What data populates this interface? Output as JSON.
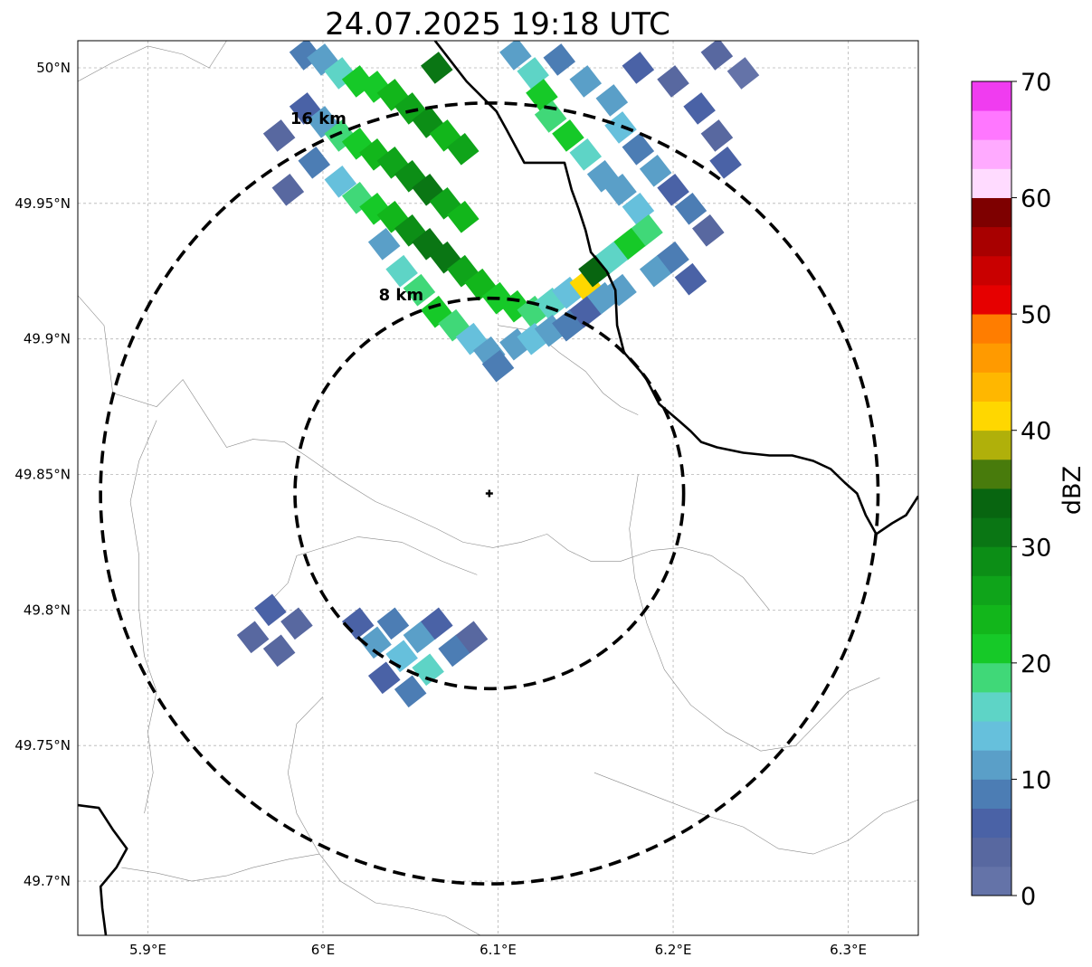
{
  "title": "24.07.2025 19:18 UTC",
  "map": {
    "lon_range": [
      5.86,
      6.34
    ],
    "lat_range": [
      49.68,
      50.01
    ],
    "lon_ticks": [
      {
        "value": 5.9,
        "label": "5.9°E"
      },
      {
        "value": 6.0,
        "label": "6°E"
      },
      {
        "value": 6.1,
        "label": "6.1°E"
      },
      {
        "value": 6.2,
        "label": "6.2°E"
      },
      {
        "value": 6.3,
        "label": "6.3°E"
      }
    ],
    "lat_ticks": [
      {
        "value": 49.7,
        "label": "49.7°N"
      },
      {
        "value": 49.75,
        "label": "49.75°N"
      },
      {
        "value": 49.8,
        "label": "49.8°N"
      },
      {
        "value": 49.85,
        "label": "49.85°N"
      },
      {
        "value": 49.9,
        "label": "49.9°N"
      },
      {
        "value": 49.95,
        "label": "49.95°N"
      },
      {
        "value": 50.0,
        "label": "50°N"
      }
    ],
    "gridlines": true,
    "radar_site": {
      "lon": 6.095,
      "lat": 49.843
    },
    "range_rings": [
      {
        "radius_km": 8,
        "label": "8 km",
        "lat_top": 49.915,
        "lon_half_width": 0.111
      },
      {
        "radius_km": 16,
        "label": "16 km",
        "lat_top": 49.987,
        "lon_half_width": 0.222
      }
    ],
    "national_border": [
      [
        [
          6.064,
          50.01
        ],
        [
          6.082,
          49.995
        ],
        [
          6.099,
          49.984
        ],
        [
          6.105,
          49.977
        ],
        [
          6.115,
          49.965
        ],
        [
          6.138,
          49.965
        ],
        [
          6.142,
          49.955
        ],
        [
          6.146,
          49.948
        ],
        [
          6.15,
          49.94
        ],
        [
          6.153,
          49.932
        ],
        [
          6.162,
          49.925
        ],
        [
          6.167,
          49.918
        ],
        [
          6.168,
          49.905
        ],
        [
          6.172,
          49.895
        ],
        [
          6.184,
          49.886
        ],
        [
          6.192,
          49.876
        ],
        [
          6.203,
          49.87
        ],
        [
          6.21,
          49.866
        ],
        [
          6.216,
          49.862
        ],
        [
          6.225,
          49.86
        ],
        [
          6.24,
          49.858
        ],
        [
          6.255,
          49.857
        ],
        [
          6.268,
          49.857
        ],
        [
          6.28,
          49.855
        ],
        [
          6.29,
          49.852
        ],
        [
          6.298,
          49.847
        ],
        [
          6.305,
          49.843
        ],
        [
          6.31,
          49.835
        ],
        [
          6.316,
          49.828
        ],
        [
          6.325,
          49.832
        ],
        [
          6.333,
          49.835
        ],
        [
          6.34,
          49.842
        ]
      ],
      [
        [
          5.86,
          49.728
        ],
        [
          5.872,
          49.727
        ],
        [
          5.88,
          49.719
        ],
        [
          5.888,
          49.712
        ],
        [
          5.882,
          49.705
        ],
        [
          5.873,
          49.698
        ],
        [
          5.874,
          49.69
        ],
        [
          5.876,
          49.68
        ]
      ]
    ],
    "admin_boundaries": [
      [
        [
          5.86,
          49.916
        ],
        [
          5.875,
          49.905
        ],
        [
          5.88,
          49.88
        ],
        [
          5.905,
          49.875
        ],
        [
          5.92,
          49.885
        ],
        [
          5.935,
          49.87
        ],
        [
          5.945,
          49.86
        ],
        [
          5.96,
          49.863
        ],
        [
          5.978,
          49.862
        ],
        [
          5.99,
          49.857
        ],
        [
          6.01,
          49.848
        ],
        [
          6.03,
          49.84
        ],
        [
          6.048,
          49.835
        ],
        [
          6.065,
          49.83
        ],
        [
          6.08,
          49.825
        ],
        [
          6.097,
          49.823
        ],
        [
          6.113,
          49.825
        ],
        [
          6.128,
          49.828
        ],
        [
          6.14,
          49.822
        ],
        [
          6.153,
          49.818
        ],
        [
          6.17,
          49.818
        ],
        [
          6.188,
          49.822
        ],
        [
          6.205,
          49.823
        ],
        [
          6.222,
          49.82
        ],
        [
          6.24,
          49.812
        ],
        [
          6.255,
          49.8
        ]
      ],
      [
        [
          5.965,
          49.8
        ],
        [
          5.98,
          49.81
        ],
        [
          5.985,
          49.82
        ],
        [
          6.0,
          49.823
        ],
        [
          6.02,
          49.827
        ],
        [
          6.045,
          49.825
        ],
        [
          6.068,
          49.818
        ],
        [
          6.088,
          49.813
        ]
      ],
      [
        [
          5.905,
          49.87
        ],
        [
          5.895,
          49.855
        ],
        [
          5.89,
          49.84
        ],
        [
          5.895,
          49.82
        ],
        [
          5.895,
          49.8
        ],
        [
          5.898,
          49.783
        ],
        [
          5.905,
          49.77
        ],
        [
          5.9,
          49.755
        ],
        [
          5.903,
          49.74
        ],
        [
          5.898,
          49.725
        ]
      ],
      [
        [
          6.0,
          49.768
        ],
        [
          5.985,
          49.758
        ],
        [
          5.98,
          49.74
        ],
        [
          5.985,
          49.725
        ],
        [
          5.998,
          49.71
        ],
        [
          6.01,
          49.7
        ],
        [
          6.03,
          49.692
        ],
        [
          6.05,
          49.69
        ],
        [
          6.07,
          49.687
        ],
        [
          6.09,
          49.68
        ]
      ],
      [
        [
          6.155,
          49.74
        ],
        [
          6.175,
          49.735
        ],
        [
          6.195,
          49.73
        ],
        [
          6.215,
          49.725
        ],
        [
          6.24,
          49.72
        ],
        [
          6.26,
          49.712
        ],
        [
          6.28,
          49.71
        ],
        [
          6.3,
          49.715
        ],
        [
          6.32,
          49.725
        ],
        [
          6.34,
          49.73
        ]
      ],
      [
        [
          6.1,
          49.905
        ],
        [
          6.12,
          49.903
        ],
        [
          6.135,
          49.895
        ],
        [
          6.15,
          49.888
        ],
        [
          6.16,
          49.88
        ],
        [
          6.17,
          49.875
        ],
        [
          6.18,
          49.872
        ]
      ],
      [
        [
          5.885,
          49.705
        ],
        [
          5.905,
          49.703
        ],
        [
          5.925,
          49.7
        ],
        [
          5.945,
          49.702
        ],
        [
          5.96,
          49.705
        ],
        [
          5.98,
          49.708
        ],
        [
          5.998,
          49.71
        ]
      ],
      [
        [
          6.18,
          49.85
        ],
        [
          6.175,
          49.83
        ],
        [
          6.178,
          49.812
        ],
        [
          6.185,
          49.795
        ],
        [
          6.195,
          49.778
        ],
        [
          6.21,
          49.765
        ],
        [
          6.23,
          49.755
        ],
        [
          6.25,
          49.748
        ],
        [
          6.27,
          49.75
        ],
        [
          6.285,
          49.76
        ],
        [
          6.3,
          49.77
        ],
        [
          6.318,
          49.775
        ]
      ],
      [
        [
          5.86,
          49.995
        ],
        [
          5.88,
          50.002
        ],
        [
          5.9,
          50.008
        ],
        [
          5.92,
          50.005
        ],
        [
          5.935,
          50.0
        ],
        [
          5.945,
          50.01
        ]
      ]
    ],
    "reflectivity_cells": [
      {
        "lon": 5.99,
        "lat": 50.005,
        "dbz": 8
      },
      {
        "lon": 6.0,
        "lat": 50.003,
        "dbz": 12
      },
      {
        "lon": 6.01,
        "lat": 49.998,
        "dbz": 16
      },
      {
        "lon": 6.02,
        "lat": 49.995,
        "dbz": 20
      },
      {
        "lon": 6.03,
        "lat": 49.993,
        "dbz": 22
      },
      {
        "lon": 6.04,
        "lat": 49.99,
        "dbz": 24
      },
      {
        "lon": 6.05,
        "lat": 49.985,
        "dbz": 26
      },
      {
        "lon": 6.06,
        "lat": 49.98,
        "dbz": 28
      },
      {
        "lon": 6.065,
        "lat": 50.0,
        "dbz": 30
      },
      {
        "lon": 6.07,
        "lat": 49.975,
        "dbz": 24
      },
      {
        "lon": 6.08,
        "lat": 49.97,
        "dbz": 26
      },
      {
        "lon": 5.99,
        "lat": 49.985,
        "dbz": 6
      },
      {
        "lon": 6.0,
        "lat": 49.98,
        "dbz": 12
      },
      {
        "lon": 6.01,
        "lat": 49.975,
        "dbz": 18
      },
      {
        "lon": 6.02,
        "lat": 49.972,
        "dbz": 22
      },
      {
        "lon": 6.03,
        "lat": 49.968,
        "dbz": 24
      },
      {
        "lon": 6.04,
        "lat": 49.965,
        "dbz": 26
      },
      {
        "lon": 6.05,
        "lat": 49.96,
        "dbz": 28
      },
      {
        "lon": 6.06,
        "lat": 49.955,
        "dbz": 30
      },
      {
        "lon": 6.07,
        "lat": 49.95,
        "dbz": 26
      },
      {
        "lon": 6.08,
        "lat": 49.945,
        "dbz": 24
      },
      {
        "lon": 5.995,
        "lat": 49.965,
        "dbz": 8
      },
      {
        "lon": 6.01,
        "lat": 49.958,
        "dbz": 14
      },
      {
        "lon": 6.02,
        "lat": 49.952,
        "dbz": 18
      },
      {
        "lon": 6.03,
        "lat": 49.948,
        "dbz": 22
      },
      {
        "lon": 6.04,
        "lat": 49.945,
        "dbz": 24
      },
      {
        "lon": 6.05,
        "lat": 49.94,
        "dbz": 28
      },
      {
        "lon": 6.06,
        "lat": 49.935,
        "dbz": 32
      },
      {
        "lon": 6.07,
        "lat": 49.93,
        "dbz": 30
      },
      {
        "lon": 6.08,
        "lat": 49.925,
        "dbz": 26
      },
      {
        "lon": 6.09,
        "lat": 49.92,
        "dbz": 24
      },
      {
        "lon": 6.1,
        "lat": 49.915,
        "dbz": 22
      },
      {
        "lon": 6.11,
        "lat": 49.912,
        "dbz": 20
      },
      {
        "lon": 6.12,
        "lat": 49.91,
        "dbz": 18
      },
      {
        "lon": 6.13,
        "lat": 49.913,
        "dbz": 16
      },
      {
        "lon": 6.14,
        "lat": 49.917,
        "dbz": 14
      },
      {
        "lon": 6.15,
        "lat": 49.92,
        "dbz": 42
      },
      {
        "lon": 6.155,
        "lat": 49.925,
        "dbz": 34
      },
      {
        "lon": 6.035,
        "lat": 49.935,
        "dbz": 12
      },
      {
        "lon": 6.045,
        "lat": 49.925,
        "dbz": 16
      },
      {
        "lon": 6.055,
        "lat": 49.918,
        "dbz": 18
      },
      {
        "lon": 6.065,
        "lat": 49.91,
        "dbz": 20
      },
      {
        "lon": 6.075,
        "lat": 49.905,
        "dbz": 18
      },
      {
        "lon": 6.085,
        "lat": 49.9,
        "dbz": 14
      },
      {
        "lon": 6.095,
        "lat": 49.895,
        "dbz": 12
      },
      {
        "lon": 6.1,
        "lat": 49.89,
        "dbz": 8
      },
      {
        "lon": 6.11,
        "lat": 49.898,
        "dbz": 10
      },
      {
        "lon": 6.12,
        "lat": 49.9,
        "dbz": 14
      },
      {
        "lon": 6.13,
        "lat": 49.903,
        "dbz": 12
      },
      {
        "lon": 6.14,
        "lat": 49.905,
        "dbz": 8
      },
      {
        "lon": 6.15,
        "lat": 49.91,
        "dbz": 6
      },
      {
        "lon": 6.16,
        "lat": 49.915,
        "dbz": 12
      },
      {
        "lon": 6.17,
        "lat": 49.918,
        "dbz": 10
      },
      {
        "lon": 6.11,
        "lat": 50.005,
        "dbz": 12
      },
      {
        "lon": 6.12,
        "lat": 49.998,
        "dbz": 16
      },
      {
        "lon": 6.125,
        "lat": 49.99,
        "dbz": 20
      },
      {
        "lon": 6.13,
        "lat": 49.982,
        "dbz": 18
      },
      {
        "lon": 6.14,
        "lat": 49.975,
        "dbz": 22
      },
      {
        "lon": 6.15,
        "lat": 49.968,
        "dbz": 16
      },
      {
        "lon": 6.16,
        "lat": 49.96,
        "dbz": 12
      },
      {
        "lon": 6.17,
        "lat": 49.955,
        "dbz": 10
      },
      {
        "lon": 6.18,
        "lat": 49.948,
        "dbz": 14
      },
      {
        "lon": 6.185,
        "lat": 49.94,
        "dbz": 18
      },
      {
        "lon": 6.175,
        "lat": 49.935,
        "dbz": 20
      },
      {
        "lon": 6.165,
        "lat": 49.93,
        "dbz": 16
      },
      {
        "lon": 6.19,
        "lat": 49.925,
        "dbz": 10
      },
      {
        "lon": 6.2,
        "lat": 49.93,
        "dbz": 8
      },
      {
        "lon": 6.21,
        "lat": 49.922,
        "dbz": 6
      },
      {
        "lon": 6.135,
        "lat": 50.003,
        "dbz": 8
      },
      {
        "lon": 6.15,
        "lat": 49.995,
        "dbz": 12
      },
      {
        "lon": 6.165,
        "lat": 49.988,
        "dbz": 10
      },
      {
        "lon": 6.17,
        "lat": 49.978,
        "dbz": 14
      },
      {
        "lon": 6.18,
        "lat": 49.97,
        "dbz": 8
      },
      {
        "lon": 6.19,
        "lat": 49.962,
        "dbz": 12
      },
      {
        "lon": 6.2,
        "lat": 49.955,
        "dbz": 6
      },
      {
        "lon": 6.21,
        "lat": 49.948,
        "dbz": 8
      },
      {
        "lon": 6.22,
        "lat": 49.94,
        "dbz": 4
      },
      {
        "lon": 6.18,
        "lat": 50.0,
        "dbz": 6
      },
      {
        "lon": 6.2,
        "lat": 49.995,
        "dbz": 4
      },
      {
        "lon": 6.215,
        "lat": 49.985,
        "dbz": 6
      },
      {
        "lon": 6.225,
        "lat": 49.975,
        "dbz": 4
      },
      {
        "lon": 6.23,
        "lat": 49.965,
        "dbz": 6
      },
      {
        "lon": 6.225,
        "lat": 50.005,
        "dbz": 3
      },
      {
        "lon": 6.24,
        "lat": 49.998,
        "dbz": 2
      },
      {
        "lon": 5.975,
        "lat": 49.975,
        "dbz": 4
      },
      {
        "lon": 5.98,
        "lat": 49.955,
        "dbz": 4
      },
      {
        "lon": 5.96,
        "lat": 49.79,
        "dbz": 4
      },
      {
        "lon": 5.97,
        "lat": 49.8,
        "dbz": 6
      },
      {
        "lon": 5.975,
        "lat": 49.785,
        "dbz": 3
      },
      {
        "lon": 5.985,
        "lat": 49.795,
        "dbz": 4
      },
      {
        "lon": 6.02,
        "lat": 49.795,
        "dbz": 6
      },
      {
        "lon": 6.03,
        "lat": 49.788,
        "dbz": 10
      },
      {
        "lon": 6.04,
        "lat": 49.795,
        "dbz": 8
      },
      {
        "lon": 6.045,
        "lat": 49.783,
        "dbz": 14
      },
      {
        "lon": 6.055,
        "lat": 49.79,
        "dbz": 12
      },
      {
        "lon": 6.06,
        "lat": 49.778,
        "dbz": 16
      },
      {
        "lon": 6.065,
        "lat": 49.795,
        "dbz": 6
      },
      {
        "lon": 6.075,
        "lat": 49.785,
        "dbz": 8
      },
      {
        "lon": 6.085,
        "lat": 49.79,
        "dbz": 4
      },
      {
        "lon": 6.035,
        "lat": 49.775,
        "dbz": 6
      },
      {
        "lon": 6.05,
        "lat": 49.77,
        "dbz": 8
      }
    ]
  },
  "colorbar": {
    "label": "dBZ",
    "min": 0,
    "max": 70,
    "step": 2.5,
    "ticks": [
      "0",
      "10",
      "20",
      "30",
      "40",
      "50",
      "60",
      "70"
    ],
    "tick_values": [
      0,
      10,
      20,
      30,
      40,
      50,
      60,
      70
    ],
    "colors": [
      "#6473a8",
      "#5868a0",
      "#4a62a6",
      "#4c7db4",
      "#5a9fc8",
      "#66c0dc",
      "#5ed4c6",
      "#40d878",
      "#16c928",
      "#12b61b",
      "#0fa41a",
      "#0c8e16",
      "#0a7614",
      "#086510",
      "#487b0c",
      "#b0b00a",
      "#ffd700",
      "#ffb700",
      "#ff9a00",
      "#ff7d00",
      "#e60000",
      "#c90000",
      "#a80000",
      "#7e0000",
      "#ffdbff",
      "#ffaaff",
      "#ff77ff",
      "#f03cf0"
    ]
  }
}
